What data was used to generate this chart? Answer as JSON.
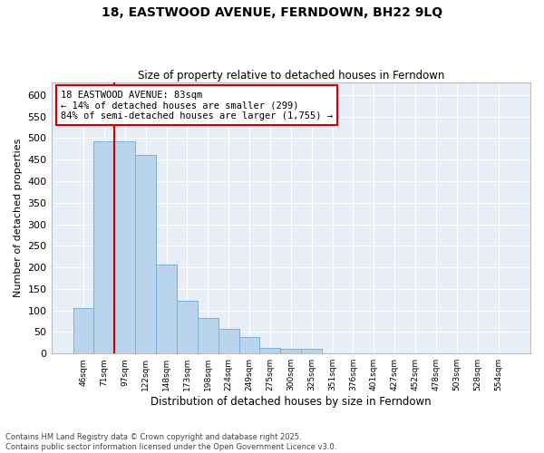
{
  "title_line1": "18, EASTWOOD AVENUE, FERNDOWN, BH22 9LQ",
  "title_line2": "Size of property relative to detached houses in Ferndown",
  "xlabel": "Distribution of detached houses by size in Ferndown",
  "ylabel": "Number of detached properties",
  "categories": [
    "46sqm",
    "71sqm",
    "97sqm",
    "122sqm",
    "148sqm",
    "173sqm",
    "198sqm",
    "224sqm",
    "249sqm",
    "275sqm",
    "300sqm",
    "325sqm",
    "351sqm",
    "376sqm",
    "401sqm",
    "427sqm",
    "452sqm",
    "478sqm",
    "503sqm",
    "528sqm",
    "554sqm"
  ],
  "values": [
    105,
    492,
    492,
    460,
    207,
    122,
    82,
    57,
    38,
    13,
    10,
    10,
    0,
    0,
    0,
    0,
    0,
    0,
    0,
    0,
    0
  ],
  "bar_color": "#bad4ed",
  "bar_edge_color": "#7aafd4",
  "vline_x": 1.5,
  "vline_color": "#cc0000",
  "annotation_text": "18 EASTWOOD AVENUE: 83sqm\n← 14% of detached houses are smaller (299)\n84% of semi-detached houses are larger (1,755) →",
  "annotation_box_color": "#cc0000",
  "annotation_fontsize": 7.5,
  "background_color": "#e8eef5",
  "footer_text": "Contains HM Land Registry data © Crown copyright and database right 2025.\nContains public sector information licensed under the Open Government Licence v3.0.",
  "ylim": [
    0,
    630
  ],
  "yticks": [
    0,
    50,
    100,
    150,
    200,
    250,
    300,
    350,
    400,
    450,
    500,
    550,
    600
  ]
}
